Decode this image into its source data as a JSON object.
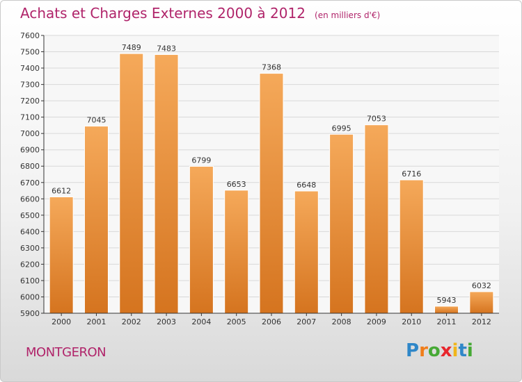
{
  "chart_data": {
    "type": "bar",
    "title": "Achats et Charges Externes 2000 à 2012",
    "unit_note": "(en milliers d'€)",
    "categories": [
      "2000",
      "2001",
      "2002",
      "2003",
      "2004",
      "2005",
      "2006",
      "2007",
      "2008",
      "2009",
      "2010",
      "2011",
      "2012"
    ],
    "values": [
      6612,
      7045,
      7489,
      7483,
      6799,
      6653,
      7368,
      6648,
      6995,
      7053,
      6716,
      5943,
      6032
    ],
    "ylim": [
      5900,
      7600
    ],
    "yticks": [
      5900,
      6000,
      6100,
      6200,
      6300,
      6400,
      6500,
      6600,
      6700,
      6800,
      6900,
      7000,
      7100,
      7200,
      7300,
      7400,
      7500,
      7600
    ],
    "grid": true,
    "bar_color_light": "#f5a95a",
    "bar_color_dark": "#d5741f"
  },
  "location": "MONTGERON",
  "logo": {
    "text": "Proxiti",
    "letters": [
      "P",
      "r",
      "o",
      "x",
      "i",
      "t",
      "i"
    ],
    "colors": [
      "#2f87c8",
      "#f07d1a",
      "#46a935",
      "#e8262d",
      "#f0b51a",
      "#2f87c8",
      "#46a935"
    ]
  },
  "colors": {
    "title": "#b0246a",
    "axis": "#333333"
  }
}
